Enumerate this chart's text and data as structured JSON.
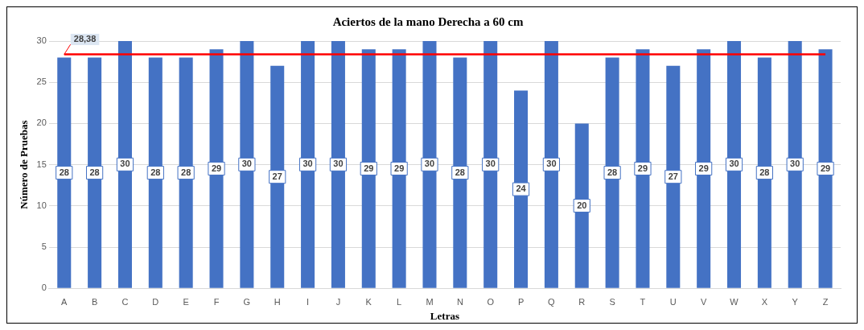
{
  "chart_data": {
    "type": "bar",
    "title": "Aciertos de la mano Derecha a 60 cm",
    "xlabel": "Letras",
    "ylabel": "Número de Pruebas",
    "categories": [
      "A",
      "B",
      "C",
      "D",
      "E",
      "F",
      "G",
      "H",
      "I",
      "J",
      "K",
      "L",
      "M",
      "N",
      "O",
      "P",
      "Q",
      "R",
      "S",
      "T",
      "U",
      "V",
      "W",
      "X",
      "Y",
      "Z"
    ],
    "values": [
      28,
      28,
      30,
      28,
      28,
      29,
      30,
      27,
      30,
      30,
      29,
      29,
      30,
      28,
      30,
      24,
      30,
      20,
      28,
      29,
      27,
      29,
      30,
      28,
      30,
      29
    ],
    "color": "#4472c4",
    "ylim": [
      0,
      30
    ],
    "yticks": [
      0,
      5,
      10,
      15,
      20,
      25,
      30
    ],
    "grid": "y",
    "legend": false,
    "data_labels": true,
    "ref_lines": [
      {
        "axis": "y",
        "value": 28.38,
        "label": "28,38",
        "color": "#ff0000"
      }
    ]
  }
}
